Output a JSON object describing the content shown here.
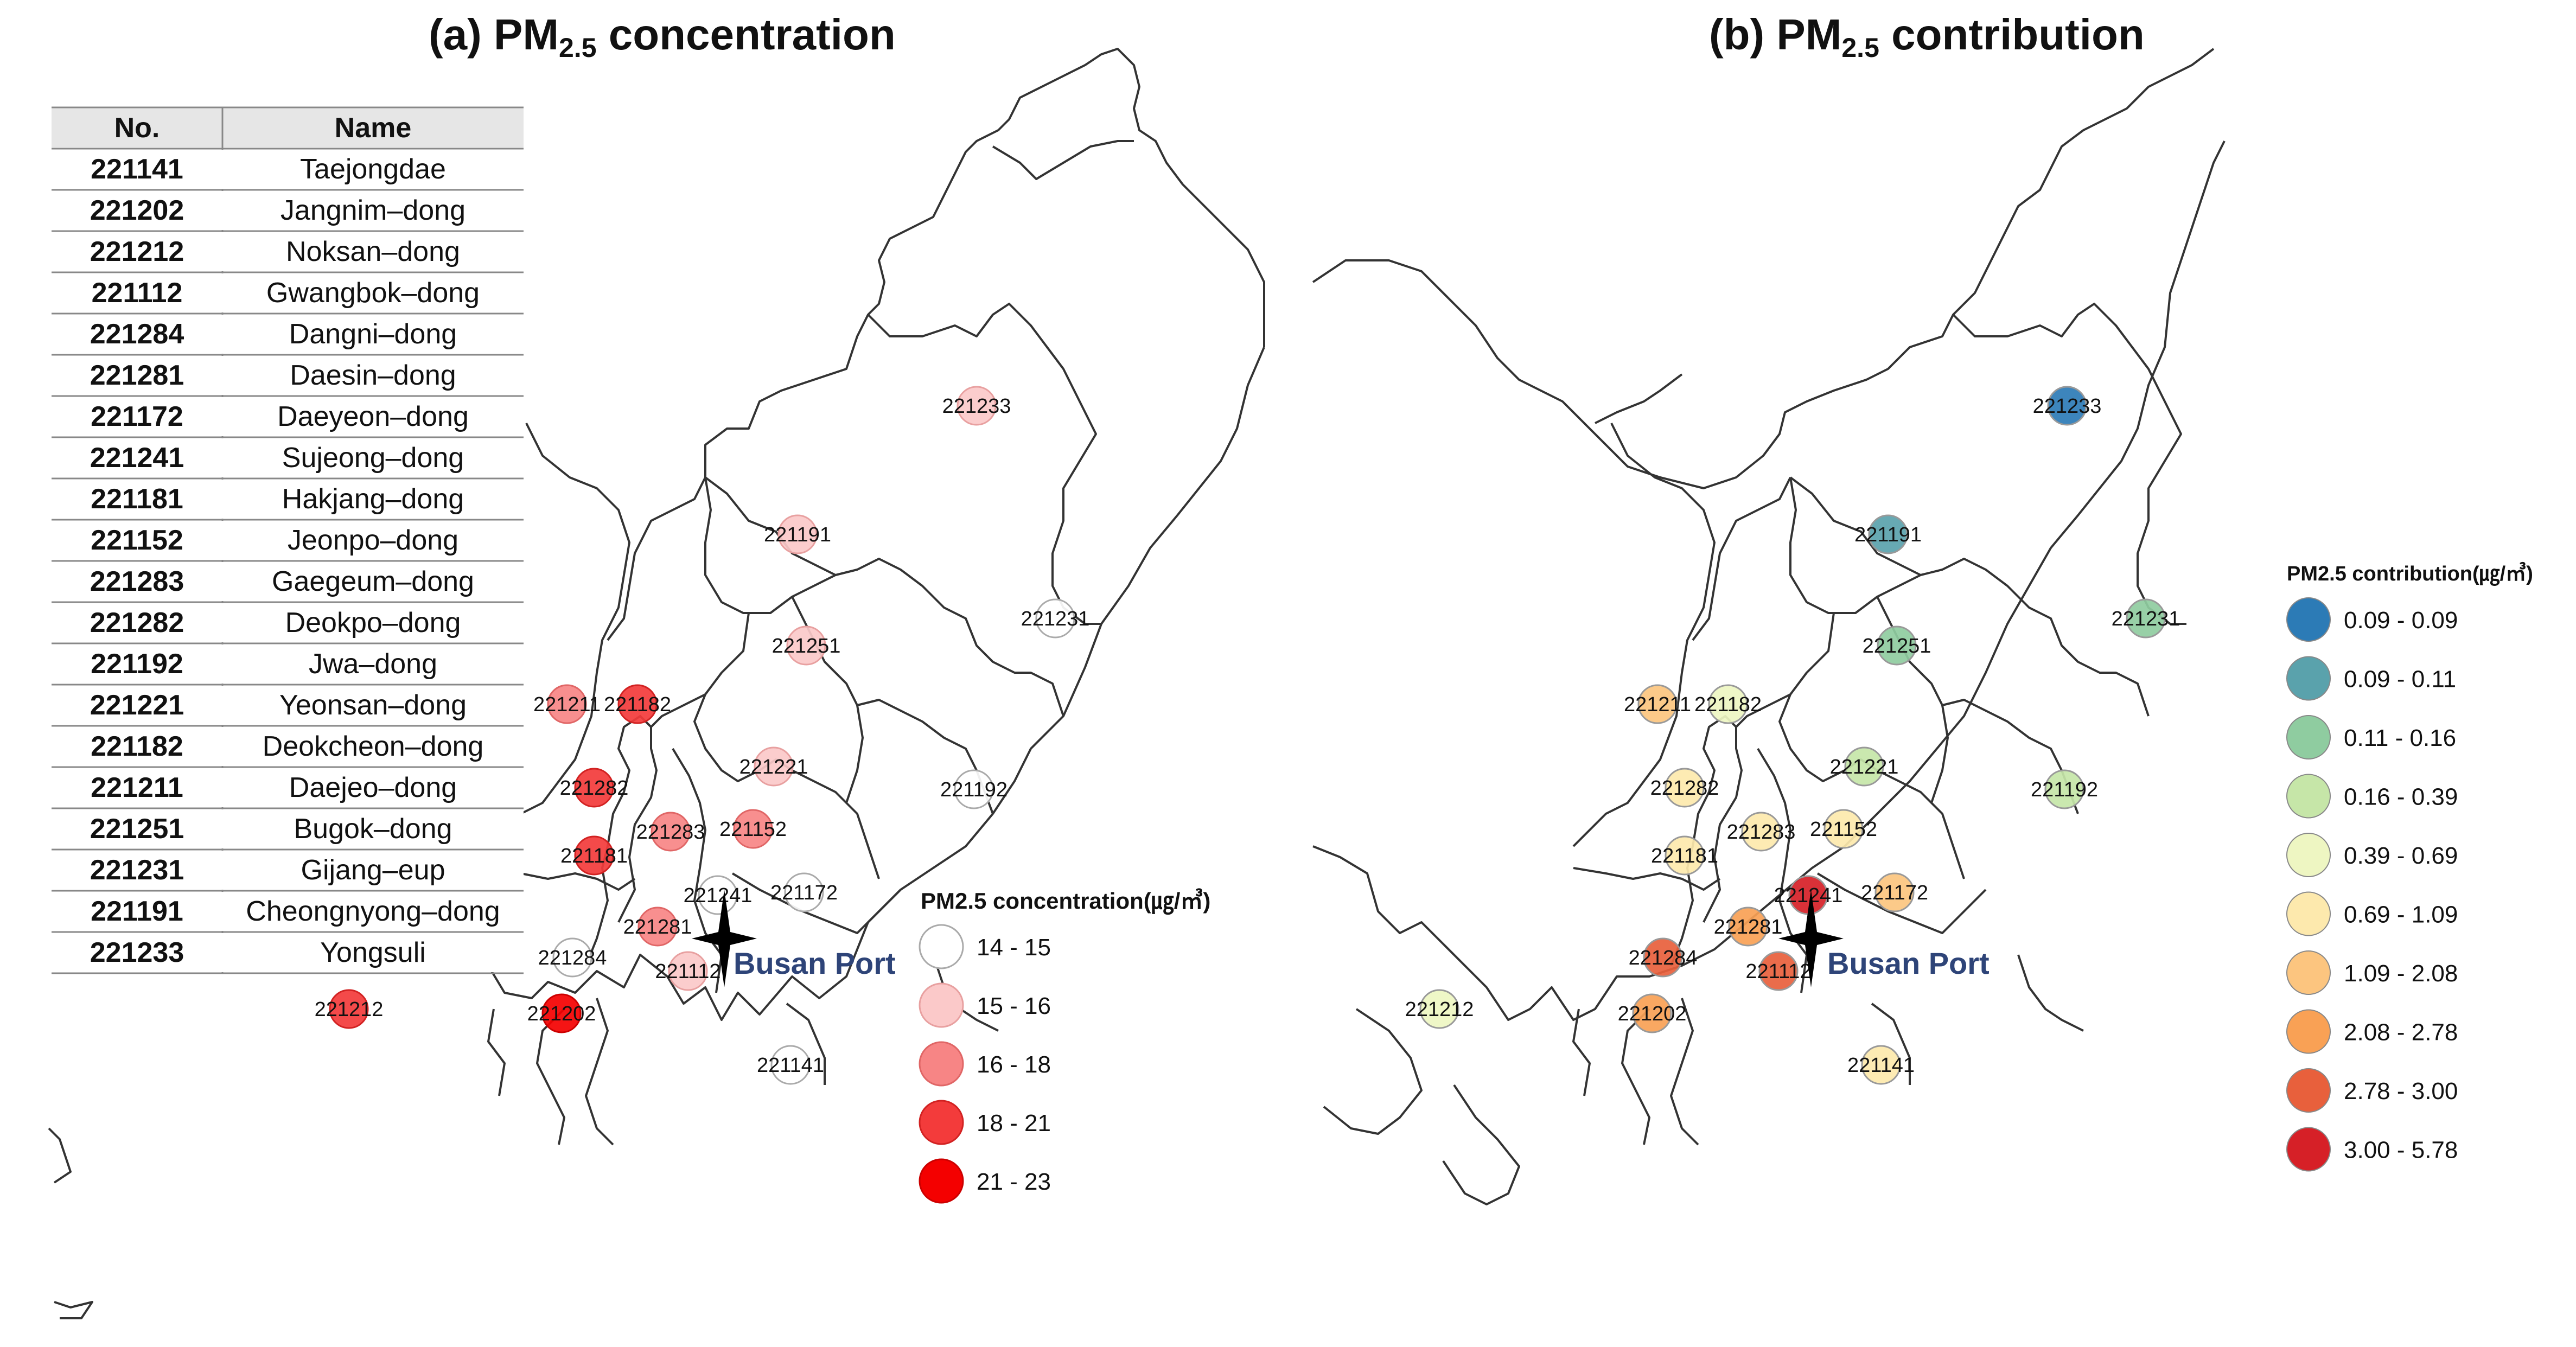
{
  "titles": {
    "a": {
      "prefix": "(a) PM",
      "sub": "2.5",
      "suffix": " concentration"
    },
    "b": {
      "prefix": "(b) PM",
      "sub": "2.5",
      "suffix": " contribution"
    }
  },
  "table": {
    "headers": [
      "No.",
      "Name"
    ],
    "rows": [
      {
        "no": "221141",
        "name": "Taejongdae"
      },
      {
        "no": "221202",
        "name": "Jangnim–dong"
      },
      {
        "no": "221212",
        "name": "Noksan–dong"
      },
      {
        "no": "221112",
        "name": "Gwangbok–dong"
      },
      {
        "no": "221284",
        "name": "Dangni–dong"
      },
      {
        "no": "221281",
        "name": "Daesin–dong"
      },
      {
        "no": "221172",
        "name": "Daeyeon–dong"
      },
      {
        "no": "221241",
        "name": "Sujeong–dong"
      },
      {
        "no": "221181",
        "name": "Hakjang–dong"
      },
      {
        "no": "221152",
        "name": "Jeonpo–dong"
      },
      {
        "no": "221283",
        "name": "Gaegeum–dong"
      },
      {
        "no": "221282",
        "name": "Deokpo–dong"
      },
      {
        "no": "221192",
        "name": "Jwa–dong"
      },
      {
        "no": "221221",
        "name": "Yeonsan–dong"
      },
      {
        "no": "221182",
        "name": "Deokcheon–dong"
      },
      {
        "no": "221211",
        "name": "Daejeo–dong"
      },
      {
        "no": "221251",
        "name": "Bugok–dong"
      },
      {
        "no": "221231",
        "name": "Gijang–eup"
      },
      {
        "no": "221191",
        "name": "Cheongnyong–dong"
      },
      {
        "no": "221233",
        "name": "Yongsuli"
      }
    ]
  },
  "port_label": "Busan Port",
  "legend_a": {
    "title": "PM2.5 concentration(㎍/㎥)",
    "classes": [
      {
        "label": "14 - 15",
        "color": "#ffffff",
        "stroke": "#aaaaaa"
      },
      {
        "label": "15 - 16",
        "color": "#fbc9c9",
        "stroke": "#e8a0a0"
      },
      {
        "label": "16 - 18",
        "color": "#f78585",
        "stroke": "#e06666"
      },
      {
        "label": "18 - 21",
        "color": "#f33b3b",
        "stroke": "#d22222"
      },
      {
        "label": "21 - 23",
        "color": "#f40000",
        "stroke": "#cc0000"
      }
    ]
  },
  "legend_b": {
    "title": "PM2.5 contribution(㎍/㎥)",
    "classes": [
      {
        "label": "0.09 - 0.09",
        "color": "#2c7bb6"
      },
      {
        "label": "0.09 - 0.11",
        "color": "#5aa2ac"
      },
      {
        "label": "0.11 - 0.16",
        "color": "#8fcca0"
      },
      {
        "label": "0.16 - 0.39",
        "color": "#c6e6a8"
      },
      {
        "label": "0.39 - 0.69",
        "color": "#eef6c2"
      },
      {
        "label": "0.69 - 1.09",
        "color": "#fde9ad"
      },
      {
        "label": "1.09 - 2.08",
        "color": "#fcc57f"
      },
      {
        "label": "2.08 - 2.78",
        "color": "#f9a155"
      },
      {
        "label": "2.78 - 3.00",
        "color": "#e8603c"
      },
      {
        "label": "3.00 - 5.78",
        "color": "#d62027"
      }
    ]
  },
  "stations": [
    {
      "id": "221233",
      "a_class": 1,
      "b_class": 0
    },
    {
      "id": "221191",
      "a_class": 1,
      "b_class": 1
    },
    {
      "id": "221231",
      "a_class": 0,
      "b_class": 2
    },
    {
      "id": "221251",
      "a_class": 1,
      "b_class": 2
    },
    {
      "id": "221211",
      "a_class": 2,
      "b_class": 6
    },
    {
      "id": "221182",
      "a_class": 3,
      "b_class": 4
    },
    {
      "id": "221221",
      "a_class": 1,
      "b_class": 3
    },
    {
      "id": "221192",
      "a_class": 0,
      "b_class": 3
    },
    {
      "id": "221282",
      "a_class": 3,
      "b_class": 5
    },
    {
      "id": "221283",
      "a_class": 2,
      "b_class": 5
    },
    {
      "id": "221152",
      "a_class": 2,
      "b_class": 5
    },
    {
      "id": "221181",
      "a_class": 3,
      "b_class": 5
    },
    {
      "id": "221241",
      "a_class": 0,
      "b_class": 9
    },
    {
      "id": "221172",
      "a_class": 0,
      "b_class": 6
    },
    {
      "id": "221281",
      "a_class": 2,
      "b_class": 7
    },
    {
      "id": "221112",
      "a_class": 1,
      "b_class": 8
    },
    {
      "id": "221284",
      "a_class": 0,
      "b_class": 8
    },
    {
      "id": "221202",
      "a_class": 4,
      "b_class": 7
    },
    {
      "id": "221212",
      "a_class": 3,
      "b_class": 4
    },
    {
      "id": "221141",
      "a_class": 0,
      "b_class": 5
    }
  ]
}
